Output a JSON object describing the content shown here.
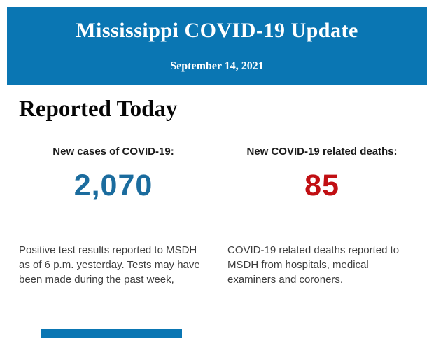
{
  "header": {
    "title": "Mississippi COVID-19 Update",
    "date": "September 14, 2021",
    "bg_color": "#0a76b3",
    "text_color": "#ffffff"
  },
  "main": {
    "section_title": "Reported Today",
    "stats": [
      {
        "label": "New cases of COVID-19:",
        "value": "2,070",
        "value_color": "#1b6c9e",
        "description": "Positive test results reported to MSDH as of 6 p.m. yesterday. Tests may have been made during the past week,"
      },
      {
        "label": "New COVID-19 related deaths:",
        "value": "85",
        "value_color": "#c10f13",
        "description": "COVID-19 related deaths reported to MSDH from hospitals, medical examiners and coroners."
      }
    ]
  },
  "footer": {
    "partial_banner_color": "#0a76b3"
  }
}
